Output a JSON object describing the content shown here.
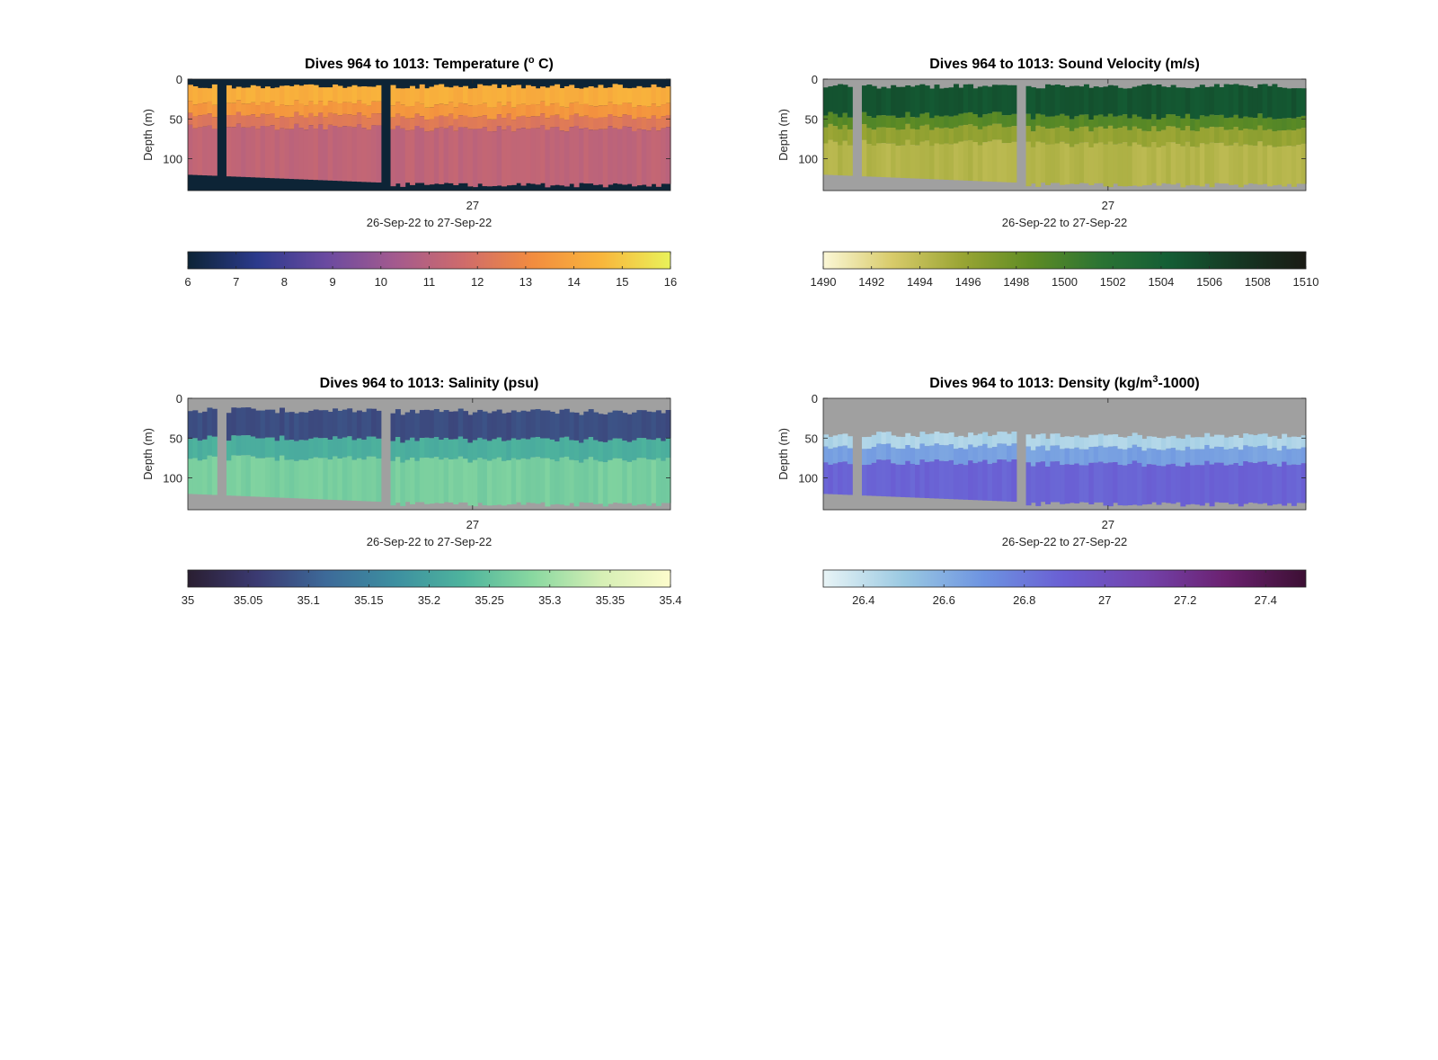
{
  "chart_data": [
    {
      "type": "heatmap",
      "title": "Dives 964 to 1013: Temperature (",
      "title_sup": "o",
      "title_tail": " C)",
      "ylabel": "Depth (m)",
      "xlabel": "26-Sep-22 to 27-Sep-22",
      "xticks": [
        "27"
      ],
      "yticks": [
        0,
        50,
        100
      ],
      "ylim": [
        0,
        140
      ],
      "background": "#0d2436",
      "colorbar": {
        "ticks": [
          "6",
          "7",
          "8",
          "9",
          "10",
          "11",
          "12",
          "13",
          "14",
          "15",
          "16"
        ],
        "range": [
          6,
          16
        ],
        "colors": [
          "#0d2436",
          "#2b3a8c",
          "#6a4aa0",
          "#a35a8e",
          "#cf6b6b",
          "#f28c3f",
          "#f9b63c",
          "#e9f25a"
        ]
      },
      "profile": {
        "bands": [
          {
            "from": 0,
            "to": 30,
            "value": 14.3
          },
          {
            "from": 30,
            "to": 45,
            "value": 13.5
          },
          {
            "from": 45,
            "to": 60,
            "value": 12.3
          },
          {
            "from": 60,
            "to": 140,
            "value": 11.2
          }
        ],
        "gaps": [
          [
            0.06,
            0.08
          ],
          [
            0.4,
            0.42
          ]
        ]
      }
    },
    {
      "type": "heatmap",
      "title": "Dives 964 to 1013: Sound Velocity (m/s)",
      "ylabel": "Depth (m)",
      "xlabel": "26-Sep-22 to 27-Sep-22",
      "xticks": [
        "27"
      ],
      "yticks": [
        0,
        50,
        100
      ],
      "ylim": [
        0,
        140
      ],
      "background": "#a0a0a0",
      "colorbar": {
        "ticks": [
          "1490",
          "1492",
          "1494",
          "1496",
          "1498",
          "1500",
          "1502",
          "1504",
          "1506",
          "1508",
          "1510"
        ],
        "range": [
          1490,
          1510
        ],
        "colors": [
          "#fbf7d6",
          "#d8cb6a",
          "#9aa534",
          "#5f8c24",
          "#2c7433",
          "#145e35",
          "#153823",
          "#1a1a14"
        ]
      },
      "profile": {
        "bands": [
          {
            "from": 0,
            "to": 45,
            "value": 1505.0
          },
          {
            "from": 45,
            "to": 60,
            "value": 1499.0
          },
          {
            "from": 60,
            "to": 80,
            "value": 1496.0
          },
          {
            "from": 80,
            "to": 140,
            "value": 1494.5
          }
        ],
        "gaps": [
          [
            0.06,
            0.08
          ],
          [
            0.4,
            0.42
          ]
        ]
      }
    },
    {
      "type": "heatmap",
      "title": "Dives 964 to 1013: Salinity (psu)",
      "ylabel": "Depth (m)",
      "xlabel": "26-Sep-22 to 27-Sep-22",
      "xticks": [
        "27"
      ],
      "yticks": [
        0,
        50,
        100
      ],
      "ylim": [
        0,
        140
      ],
      "background": "#a0a0a0",
      "colorbar": {
        "ticks": [
          "35",
          "35.05",
          "35.1",
          "35.15",
          "35.2",
          "35.25",
          "35.3",
          "35.35",
          "35.4"
        ],
        "range": [
          35,
          35.4
        ],
        "colors": [
          "#2a1e31",
          "#3b3a72",
          "#3d6a99",
          "#3d8fa0",
          "#4eb49d",
          "#89d8a0",
          "#d6efb5",
          "#fdfccc"
        ]
      },
      "profile": {
        "bands": [
          {
            "from": 15,
            "to": 50,
            "value": 35.08
          },
          {
            "from": 50,
            "to": 75,
            "value": 35.22
          },
          {
            "from": 75,
            "to": 140,
            "value": 35.27
          }
        ],
        "gaps": [
          [
            0.06,
            0.08
          ],
          [
            0.4,
            0.42
          ]
        ]
      }
    },
    {
      "type": "heatmap",
      "title": "Dives 964 to 1013: Density (kg/m",
      "title_sup": "3",
      "title_tail": "-1000)",
      "ylabel": "Depth (m)",
      "xlabel": "26-Sep-22 to 27-Sep-22",
      "xticks": [
        "27"
      ],
      "yticks": [
        0,
        50,
        100
      ],
      "ylim": [
        0,
        140
      ],
      "background": "#a0a0a0",
      "colorbar": {
        "ticks": [
          "26.4",
          "26.6",
          "26.8",
          "27",
          "27.2",
          "27.4"
        ],
        "range": [
          26.3,
          27.5
        ],
        "colors": [
          "#e8f4f6",
          "#9ac9e2",
          "#6d93e1",
          "#6a5ed3",
          "#7343ac",
          "#6b2170",
          "#3c0f33"
        ]
      },
      "profile": {
        "bands": [
          {
            "from": 45,
            "to": 60,
            "value": 26.45
          },
          {
            "from": 60,
            "to": 80,
            "value": 26.65
          },
          {
            "from": 80,
            "to": 140,
            "value": 26.88
          }
        ],
        "gaps": [
          [
            0.06,
            0.08
          ],
          [
            0.4,
            0.42
          ]
        ]
      }
    }
  ]
}
